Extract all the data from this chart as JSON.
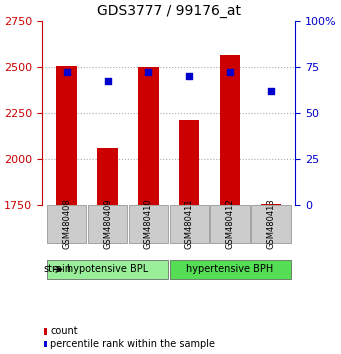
{
  "title": "GDS3777 / 99176_at",
  "samples": [
    "GSM480408",
    "GSM480409",
    "GSM480410",
    "GSM480411",
    "GSM480412",
    "GSM480413"
  ],
  "counts": [
    2505,
    2060,
    2500,
    2210,
    2565,
    1755
  ],
  "percentiles": [
    72,
    67,
    72,
    70,
    72,
    62
  ],
  "ylim_left": [
    1750,
    2750
  ],
  "ylim_right": [
    0,
    100
  ],
  "yticks_left": [
    1750,
    2000,
    2250,
    2500,
    2750
  ],
  "yticks_right": [
    0,
    25,
    50,
    75,
    100
  ],
  "ytick_labels_right": [
    "0",
    "25",
    "50",
    "75",
    "100%"
  ],
  "bar_color": "#cc0000",
  "dot_color": "#0000cc",
  "bar_bottom": 1750,
  "groups": [
    {
      "label": "hypotensive BPL",
      "color": "#99ee99",
      "samples": [
        0,
        1,
        2
      ]
    },
    {
      "label": "hypertensive BPH",
      "color": "#55dd55",
      "samples": [
        3,
        4,
        5
      ]
    }
  ],
  "strain_label": "strain",
  "legend_count_label": "count",
  "legend_pct_label": "percentile rank within the sample",
  "xlabel_color": "#cc0000",
  "ylabel_right_color": "#0000cc",
  "grid_color": "#aaaaaa",
  "background_color": "#ffffff",
  "plot_bg": "#ffffff",
  "tick_box_bg": "#cccccc",
  "tick_box_border": "#888888"
}
